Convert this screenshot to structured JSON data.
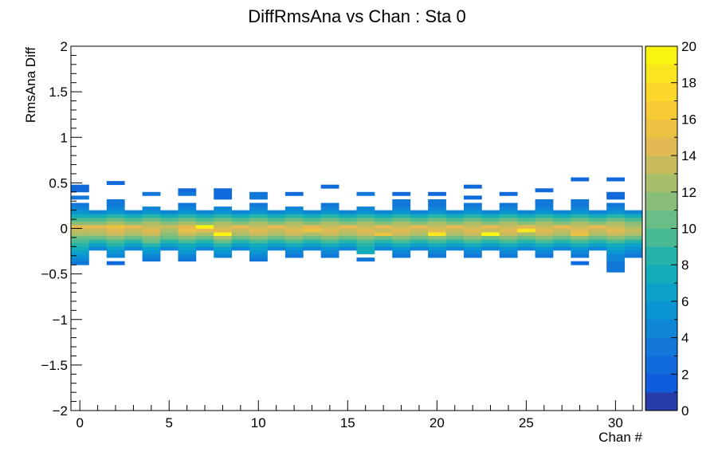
{
  "chart_data": {
    "type": "heatmap",
    "title": "DiffRmsAna vs Chan : Sta 0",
    "xlabel": "Chan #",
    "ylabel": "RmsAna Diff",
    "xlim": [
      -0.5,
      31.5
    ],
    "ylim": [
      -2,
      2
    ],
    "x_ticks": [
      "0",
      "5",
      "10",
      "15",
      "20",
      "25",
      "30"
    ],
    "y_ticks": [
      "−2",
      "−1.5",
      "−1",
      "−0.5",
      "0",
      "0.5",
      "1",
      "1.5",
      "2"
    ],
    "colorbar": {
      "min": 0,
      "max": 20,
      "ticks": [
        "0",
        "2",
        "4",
        "6",
        "8",
        "10",
        "12",
        "14",
        "16",
        "18",
        "20"
      ]
    },
    "y_bin_width": 0.04,
    "y_bin_centers": [
      -0.46,
      -0.42,
      -0.38,
      -0.34,
      -0.3,
      -0.26,
      -0.22,
      -0.18,
      -0.14,
      -0.1,
      -0.06,
      -0.02,
      0.02,
      0.06,
      0.1,
      0.14,
      0.18,
      0.22,
      0.26,
      0.3,
      0.34,
      0.38,
      0.42,
      0.46,
      0.5,
      0.54
    ],
    "channels": [
      0,
      1,
      2,
      3,
      4,
      5,
      6,
      7,
      8,
      9,
      10,
      11,
      12,
      13,
      14,
      15,
      16,
      17,
      18,
      19,
      20,
      21,
      22,
      23,
      24,
      25,
      26,
      27,
      28,
      29,
      30,
      31
    ],
    "counts": [
      [
        0,
        0,
        3,
        4,
        5,
        6,
        7,
        8,
        9,
        10,
        12,
        13,
        14,
        11,
        9,
        7,
        5,
        4,
        3,
        0,
        3,
        0,
        2,
        2,
        0,
        0
      ],
      [
        0,
        0,
        0,
        0,
        0,
        0,
        4,
        6,
        8,
        10,
        12,
        13,
        14,
        11,
        9,
        7,
        4,
        0,
        0,
        0,
        0,
        0,
        0,
        0,
        0,
        0
      ],
      [
        0,
        0,
        2,
        0,
        4,
        5,
        6,
        8,
        9,
        11,
        13,
        14,
        15,
        12,
        10,
        8,
        5,
        4,
        3,
        3,
        0,
        0,
        0,
        0,
        2,
        0
      ],
      [
        0,
        0,
        0,
        0,
        0,
        0,
        4,
        6,
        8,
        10,
        12,
        13,
        14,
        11,
        9,
        7,
        4,
        0,
        0,
        0,
        0,
        0,
        0,
        0,
        0,
        0
      ],
      [
        0,
        0,
        0,
        3,
        4,
        5,
        6,
        8,
        10,
        11,
        13,
        14,
        13,
        12,
        10,
        8,
        5,
        4,
        0,
        0,
        0,
        3,
        0,
        0,
        0,
        0
      ],
      [
        0,
        0,
        0,
        0,
        0,
        0,
        4,
        6,
        8,
        10,
        11,
        12,
        13,
        11,
        9,
        7,
        4,
        0,
        0,
        0,
        0,
        0,
        0,
        0,
        0,
        0
      ],
      [
        0,
        0,
        0,
        3,
        4,
        5,
        6,
        7,
        9,
        11,
        13,
        15,
        14,
        12,
        10,
        8,
        5,
        4,
        3,
        0,
        0,
        3,
        2,
        0,
        0,
        0
      ],
      [
        0,
        0,
        0,
        0,
        0,
        0,
        4,
        6,
        8,
        10,
        12,
        14,
        19,
        11,
        9,
        7,
        4,
        0,
        0,
        0,
        0,
        0,
        0,
        0,
        0,
        0
      ],
      [
        0,
        0,
        0,
        0,
        4,
        5,
        6,
        8,
        10,
        12,
        19,
        14,
        13,
        12,
        10,
        8,
        5,
        4,
        0,
        0,
        2,
        2,
        2,
        0,
        0,
        0
      ],
      [
        0,
        0,
        0,
        0,
        0,
        0,
        4,
        6,
        8,
        10,
        12,
        13,
        14,
        11,
        9,
        7,
        4,
        0,
        0,
        0,
        0,
        0,
        0,
        0,
        0,
        0
      ],
      [
        0,
        0,
        0,
        3,
        4,
        5,
        6,
        7,
        9,
        11,
        13,
        14,
        13,
        12,
        10,
        8,
        5,
        4,
        3,
        0,
        3,
        3,
        0,
        0,
        0,
        0
      ],
      [
        0,
        0,
        0,
        0,
        0,
        0,
        4,
        6,
        8,
        10,
        12,
        13,
        14,
        11,
        9,
        7,
        4,
        0,
        0,
        0,
        0,
        0,
        0,
        0,
        0,
        0
      ],
      [
        0,
        0,
        0,
        0,
        3,
        4,
        5,
        7,
        9,
        11,
        13,
        14,
        13,
        12,
        10,
        8,
        5,
        4,
        0,
        0,
        0,
        2,
        0,
        0,
        0,
        0
      ],
      [
        0,
        0,
        0,
        0,
        0,
        0,
        4,
        6,
        8,
        10,
        12,
        15,
        14,
        11,
        9,
        7,
        4,
        0,
        0,
        0,
        0,
        0,
        0,
        0,
        0,
        0
      ],
      [
        0,
        0,
        0,
        0,
        3,
        4,
        5,
        7,
        9,
        11,
        13,
        14,
        13,
        12,
        10,
        8,
        5,
        4,
        3,
        0,
        0,
        0,
        0,
        2,
        0,
        0
      ],
      [
        0,
        0,
        0,
        0,
        0,
        0,
        4,
        6,
        8,
        10,
        12,
        13,
        14,
        11,
        9,
        7,
        4,
        0,
        0,
        0,
        0,
        0,
        0,
        0,
        0,
        0
      ],
      [
        0,
        0,
        0,
        3,
        0,
        7,
        7,
        8,
        9,
        11,
        13,
        14,
        13,
        12,
        10,
        8,
        5,
        4,
        0,
        0,
        0,
        3,
        0,
        0,
        0,
        0
      ],
      [
        0,
        0,
        0,
        0,
        0,
        0,
        4,
        6,
        8,
        10,
        15,
        13,
        14,
        11,
        9,
        7,
        4,
        0,
        0,
        0,
        0,
        0,
        0,
        0,
        0,
        0
      ],
      [
        0,
        0,
        0,
        0,
        3,
        4,
        5,
        7,
        9,
        11,
        13,
        14,
        13,
        12,
        10,
        8,
        5,
        4,
        3,
        3,
        0,
        2,
        0,
        0,
        0,
        0
      ],
      [
        0,
        0,
        0,
        0,
        0,
        0,
        4,
        6,
        8,
        10,
        12,
        13,
        14,
        11,
        9,
        7,
        4,
        0,
        0,
        0,
        0,
        0,
        0,
        0,
        0,
        0
      ],
      [
        0,
        0,
        0,
        0,
        3,
        4,
        5,
        7,
        9,
        11,
        18,
        14,
        13,
        12,
        10,
        8,
        5,
        4,
        3,
        3,
        0,
        2,
        0,
        0,
        0,
        0
      ],
      [
        0,
        0,
        0,
        0,
        0,
        0,
        4,
        6,
        8,
        10,
        12,
        13,
        14,
        11,
        9,
        7,
        4,
        0,
        0,
        0,
        0,
        0,
        0,
        0,
        0,
        0
      ],
      [
        0,
        0,
        0,
        0,
        3,
        4,
        5,
        7,
        9,
        11,
        13,
        14,
        13,
        12,
        10,
        8,
        5,
        4,
        3,
        0,
        2,
        0,
        0,
        2,
        0,
        0
      ],
      [
        0,
        0,
        0,
        0,
        0,
        0,
        4,
        6,
        8,
        10,
        19,
        13,
        14,
        11,
        9,
        7,
        4,
        0,
        0,
        0,
        0,
        0,
        0,
        0,
        0,
        0
      ],
      [
        0,
        0,
        0,
        0,
        3,
        4,
        5,
        7,
        9,
        11,
        13,
        14,
        13,
        12,
        10,
        8,
        5,
        4,
        3,
        0,
        0,
        2,
        0,
        0,
        0,
        0
      ],
      [
        0,
        0,
        0,
        0,
        0,
        0,
        4,
        6,
        8,
        10,
        12,
        18,
        14,
        11,
        9,
        7,
        4,
        0,
        0,
        0,
        0,
        0,
        0,
        0,
        0,
        0
      ],
      [
        0,
        0,
        0,
        0,
        3,
        4,
        5,
        7,
        9,
        11,
        13,
        14,
        13,
        12,
        10,
        8,
        5,
        4,
        3,
        3,
        0,
        0,
        2,
        0,
        0,
        0
      ],
      [
        0,
        0,
        0,
        0,
        0,
        0,
        4,
        6,
        8,
        10,
        12,
        13,
        14,
        11,
        9,
        7,
        4,
        0,
        0,
        0,
        0,
        0,
        0,
        0,
        0,
        0
      ],
      [
        0,
        0,
        2,
        0,
        3,
        4,
        5,
        7,
        9,
        11,
        15,
        14,
        13,
        12,
        10,
        8,
        5,
        4,
        3,
        3,
        0,
        0,
        0,
        0,
        0,
        2
      ],
      [
        0,
        0,
        0,
        0,
        0,
        0,
        4,
        6,
        8,
        10,
        12,
        13,
        14,
        11,
        9,
        7,
        4,
        0,
        0,
        0,
        0,
        0,
        0,
        0,
        0,
        0
      ],
      [
        3,
        3,
        3,
        4,
        4,
        5,
        6,
        7,
        9,
        11,
        13,
        14,
        13,
        12,
        10,
        8,
        5,
        4,
        3,
        0,
        2,
        2,
        0,
        0,
        0,
        2
      ],
      [
        0,
        0,
        0,
        0,
        3,
        4,
        5,
        6,
        8,
        10,
        12,
        13,
        12,
        11,
        9,
        7,
        4,
        0,
        0,
        0,
        0,
        0,
        0,
        0,
        0,
        0
      ]
    ]
  }
}
